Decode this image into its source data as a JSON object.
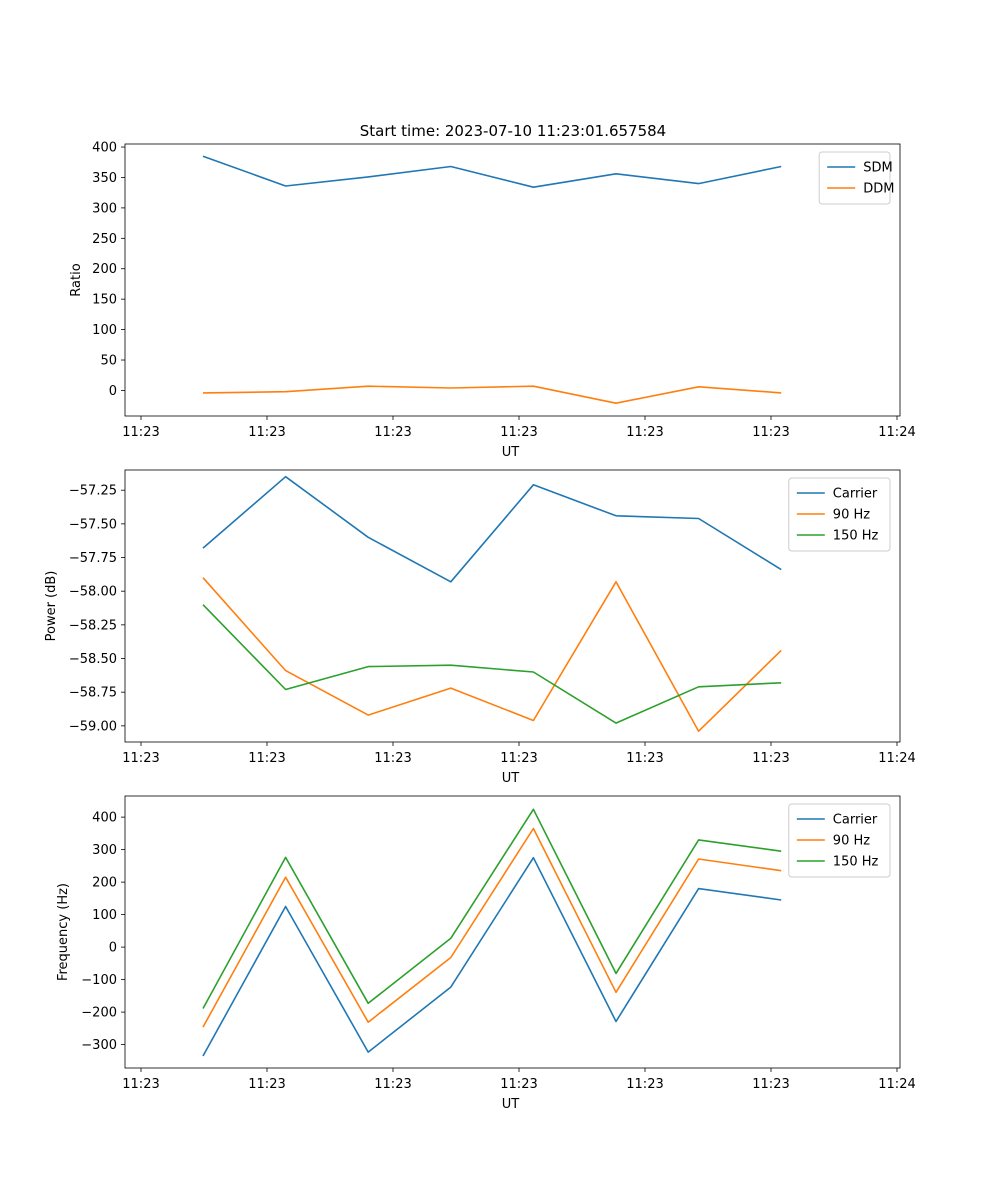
{
  "title": "Start time: 2023-07-10 11:23:01.657584",
  "colors": {
    "blue": "#1f77b4",
    "orange": "#ff7f0e",
    "green": "#2ca02c"
  },
  "chart_data": [
    {
      "type": "line",
      "title": "Start time: 2023-07-10 11:23:01.657584",
      "xlabel": "UT",
      "ylabel": "Ratio",
      "xticks": [
        "11:23",
        "11:23",
        "11:23",
        "11:23",
        "11:23",
        "11:23",
        "11:24"
      ],
      "x": [
        1,
        2,
        3,
        4,
        5,
        6,
        7,
        8
      ],
      "xlim": [
        0.25,
        8.45
      ],
      "ylim": [
        -42,
        405
      ],
      "yticks": [
        "0",
        "50",
        "100",
        "150",
        "200",
        "250",
        "300",
        "350",
        "400"
      ],
      "legend": "top-right",
      "series": [
        {
          "name": "SDM",
          "color": "#1f77b4",
          "values": [
            385,
            336,
            351,
            368,
            334,
            356,
            340,
            368
          ]
        },
        {
          "name": "DDM",
          "color": "#ff7f0e",
          "values": [
            -4,
            -2,
            7,
            4,
            7,
            -21,
            6,
            -4
          ]
        }
      ]
    },
    {
      "type": "line",
      "xlabel": "UT",
      "ylabel": "Power (dB)",
      "xticks": [
        "11:23",
        "11:23",
        "11:23",
        "11:23",
        "11:23",
        "11:23",
        "11:24"
      ],
      "x": [
        1,
        2,
        3,
        4,
        5,
        6,
        7,
        8
      ],
      "xlim": [
        0.25,
        8.45
      ],
      "ylim": [
        -59.12,
        -57.1
      ],
      "yticks": [
        "−59.00",
        "−58.75",
        "−58.50",
        "−58.25",
        "−58.00",
        "−57.75",
        "−57.50",
        "−57.25"
      ],
      "legend": "top-right",
      "series": [
        {
          "name": "Carrier",
          "color": "#1f77b4",
          "values": [
            -57.68,
            -57.15,
            -57.6,
            -57.93,
            -57.21,
            -57.44,
            -57.46,
            -57.84
          ]
        },
        {
          "name": "90 Hz",
          "color": "#ff7f0e",
          "values": [
            -57.9,
            -58.59,
            -58.92,
            -58.72,
            -58.96,
            -57.93,
            -59.04,
            -58.44
          ]
        },
        {
          "name": "150 Hz",
          "color": "#2ca02c",
          "values": [
            -58.1,
            -58.73,
            -58.56,
            -58.55,
            -58.6,
            -58.98,
            -58.71,
            -58.68
          ]
        }
      ]
    },
    {
      "type": "line",
      "xlabel": "UT",
      "ylabel": "Frequency (Hz)",
      "xticks": [
        "11:23",
        "11:23",
        "11:23",
        "11:23",
        "11:23",
        "11:23",
        "11:24"
      ],
      "x": [
        1,
        2,
        3,
        4,
        5,
        6,
        7,
        8
      ],
      "xlim": [
        0.25,
        8.45
      ],
      "ylim": [
        -372,
        465
      ],
      "yticks": [
        "−300",
        "−200",
        "−100",
        "0",
        "100",
        "200",
        "300",
        "400"
      ],
      "legend": "top-right",
      "series": [
        {
          "name": "Carrier",
          "color": "#1f77b4",
          "values": [
            -335,
            125,
            -323,
            -123,
            275,
            -229,
            180,
            145
          ]
        },
        {
          "name": "90 Hz",
          "color": "#ff7f0e",
          "values": [
            -246,
            215,
            -231,
            -32,
            365,
            -139,
            271,
            235
          ]
        },
        {
          "name": "150 Hz",
          "color": "#2ca02c",
          "values": [
            -189,
            276,
            -173,
            27,
            424,
            -81,
            330,
            295
          ]
        }
      ]
    }
  ]
}
